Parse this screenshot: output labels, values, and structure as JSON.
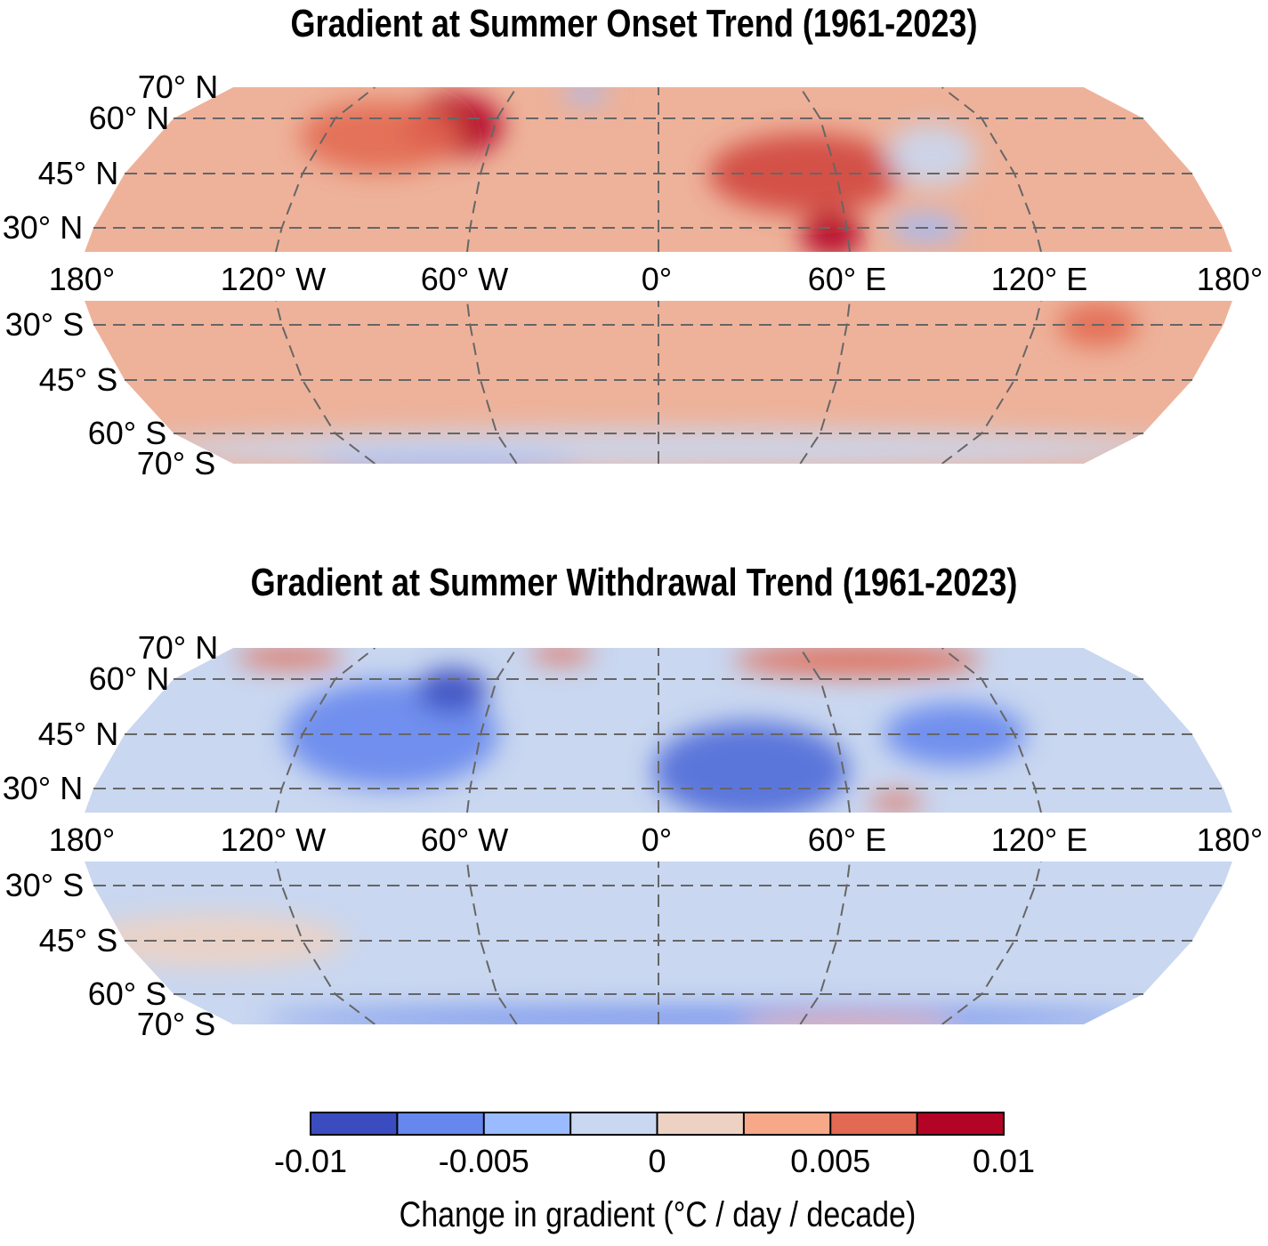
{
  "panels": [
    {
      "title": "Gradient at Summer Onset Trend (1961-2023)",
      "base_color": "#eeb29a",
      "patches": [
        {
          "lon": -75,
          "lat": 58,
          "rx": 55,
          "ry": 35,
          "color": "#b40426"
        },
        {
          "lon": -100,
          "lat": 55,
          "rx": 90,
          "ry": 40,
          "color": "#e26952"
        },
        {
          "lon": 50,
          "lat": 45,
          "rx": 110,
          "ry": 45,
          "color": "#d0473d"
        },
        {
          "lon": 55,
          "lat": 28,
          "rx": 35,
          "ry": 25,
          "color": "#b40426"
        },
        {
          "lon": 95,
          "lat": 50,
          "rx": 50,
          "ry": 35,
          "color": "#c9d7f0"
        },
        {
          "lon": 85,
          "lat": 30,
          "rx": 40,
          "ry": 15,
          "color": "#9abbff"
        },
        {
          "lon": -30,
          "lat": 68,
          "rx": 25,
          "ry": 10,
          "color": "#9abbff"
        },
        {
          "lon": 140,
          "lat": -30,
          "rx": 45,
          "ry": 25,
          "color": "#e26952"
        },
        {
          "lon": 0,
          "lat": -65,
          "rx": 600,
          "ry": 22,
          "color": "#c9d7f0"
        },
        {
          "lon": -90,
          "lat": -70,
          "rx": 150,
          "ry": 10,
          "color": "#9abbff"
        }
      ]
    },
    {
      "title": "Gradient at Summer Withdrawal Trend (1961-2023)",
      "base_color": "#c9d7f0",
      "patches": [
        {
          "lon": -90,
          "lat": 45,
          "rx": 120,
          "ry": 60,
          "color": "#6687ed"
        },
        {
          "lon": -75,
          "lat": 57,
          "rx": 40,
          "ry": 25,
          "color": "#3b4cc0"
        },
        {
          "lon": 30,
          "lat": 35,
          "rx": 110,
          "ry": 55,
          "color": "#4f6bd8"
        },
        {
          "lon": 100,
          "lat": 45,
          "rx": 80,
          "ry": 35,
          "color": "#6687ed"
        },
        {
          "lon": 80,
          "lat": 66,
          "rx": 140,
          "ry": 18,
          "color": "#e26952"
        },
        {
          "lon": -150,
          "lat": 67,
          "rx": 60,
          "ry": 12,
          "color": "#e26952"
        },
        {
          "lon": -40,
          "lat": 68,
          "rx": 35,
          "ry": 10,
          "color": "#e26952"
        },
        {
          "lon": 75,
          "lat": 26,
          "rx": 30,
          "ry": 10,
          "color": "#e26952"
        },
        {
          "lon": 20,
          "lat": -68,
          "rx": 500,
          "ry": 12,
          "color": "#6687ed"
        },
        {
          "lon": 80,
          "lat": -70,
          "rx": 120,
          "ry": 8,
          "color": "#f7a889"
        },
        {
          "lon": -150,
          "lat": -45,
          "rx": 150,
          "ry": 30,
          "color": "#edd1c2"
        }
      ]
    }
  ],
  "lat_labels_north": [
    "70° N",
    "60° N",
    "45° N",
    "30° N"
  ],
  "lat_labels_south": [
    "30° S",
    "45° S",
    "60° S",
    "70° S"
  ],
  "lon_labels": [
    "180°",
    "120° W",
    "60° W",
    "0°",
    "60° E",
    "120° E",
    "180°"
  ],
  "colorbar": {
    "label": "Change in gradient (°C / day / decade)",
    "range": [
      -0.01,
      0.01
    ],
    "ticks": [
      "-0.01",
      "-0.005",
      "0",
      "0.005",
      "0.01"
    ],
    "bins": 8,
    "colors": [
      "#3b4cc0",
      "#6687ed",
      "#9abbff",
      "#c9d7f0",
      "#edd1c2",
      "#f7a889",
      "#e26952",
      "#b40426"
    ]
  }
}
